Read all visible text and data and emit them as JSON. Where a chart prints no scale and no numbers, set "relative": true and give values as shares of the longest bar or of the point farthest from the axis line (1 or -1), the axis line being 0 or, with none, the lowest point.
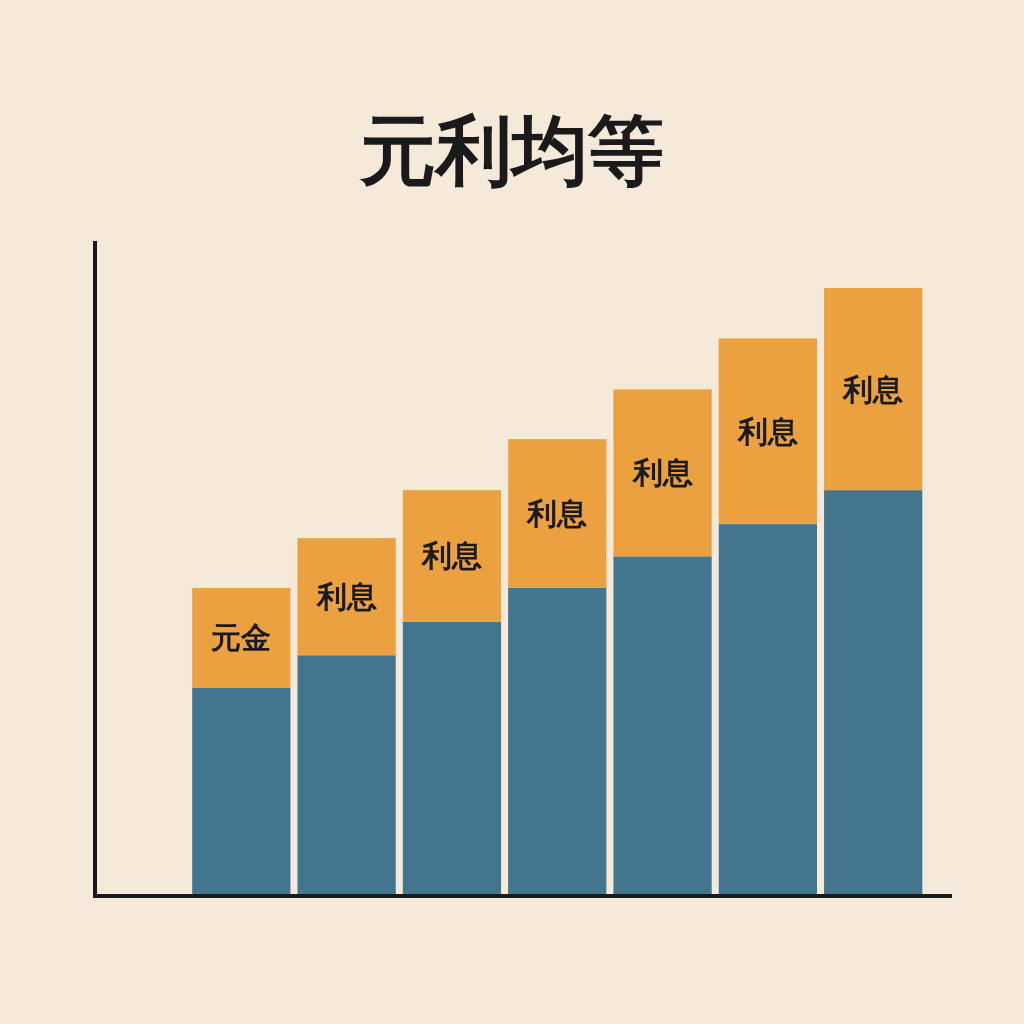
{
  "chart_data": {
    "type": "bar",
    "title": "元利均等",
    "categories": [
      null,
      null,
      null,
      null,
      null,
      null,
      null
    ],
    "stacked": true,
    "relative": true,
    "series": [
      {
        "color": "#44758f",
        "values": [
          0.341,
          0.395,
          0.45,
          0.506,
          0.558,
          0.611,
          0.667
        ]
      },
      {
        "color": "#eca140",
        "values": [
          0.165,
          0.193,
          0.217,
          0.245,
          0.275,
          0.306,
          0.333
        ]
      }
    ],
    "annotations": [
      "元金",
      "利息",
      "利息",
      "利息",
      "利息",
      "利息",
      "利息"
    ]
  }
}
